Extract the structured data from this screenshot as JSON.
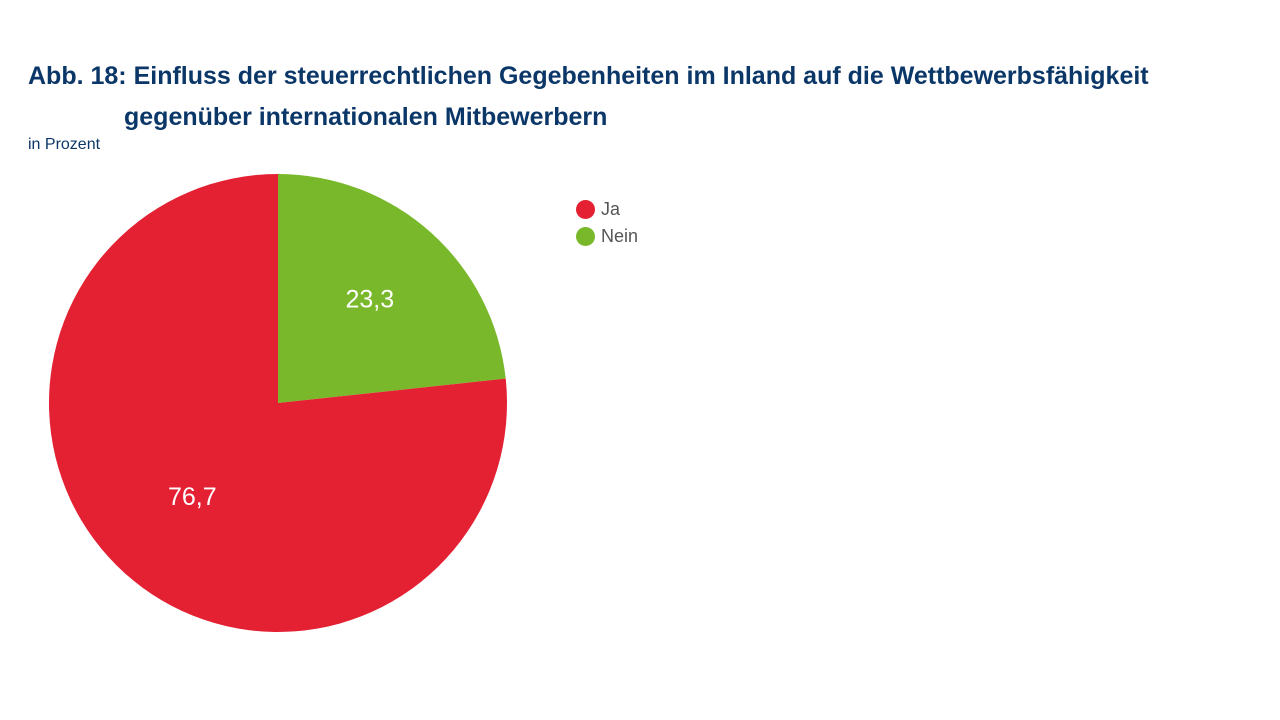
{
  "chart_data": {
    "type": "pie",
    "title_prefix": "Abb. 18:",
    "title": "Einfluss der steuerrechtlichen Gegebenheiten im Inland auf die Wettbewerbsfähigkeit",
    "title_continuation": "gegenüber internationalen Mitbewerbern",
    "subtitle": "in Prozent",
    "slices": [
      {
        "label": "Ja",
        "value": 76.7,
        "display": "76,7",
        "color": "#e32133"
      },
      {
        "label": "Nein",
        "value": 23.3,
        "display": "23,3",
        "color": "#79b82a"
      }
    ],
    "legend_position": "right"
  }
}
